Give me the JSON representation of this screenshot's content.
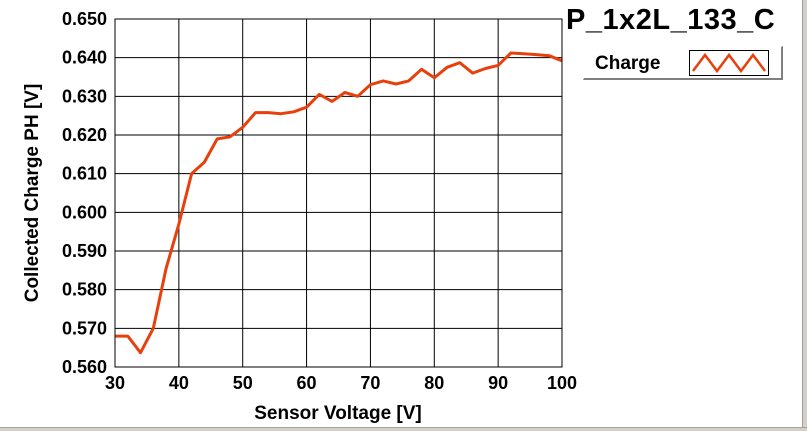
{
  "chart_data": {
    "type": "line",
    "title": "P_1x2L_133_C",
    "xlabel": "Sensor Voltage [V]",
    "ylabel": "Collected Charge PH [V]",
    "xlim": [
      30,
      100
    ],
    "ylim": [
      0.56,
      0.65
    ],
    "grid": true,
    "legend_placement": "top-right",
    "x_ticks": [
      "30",
      "40",
      "50",
      "60",
      "70",
      "80",
      "90",
      "100"
    ],
    "y_ticks": [
      "0.560",
      "0.570",
      "0.580",
      "0.590",
      "0.600",
      "0.610",
      "0.620",
      "0.630",
      "0.640",
      "0.650"
    ],
    "series": [
      {
        "name": "Charge",
        "color": "#e8400c",
        "x": [
          30,
          32,
          34,
          36,
          38,
          40,
          42,
          44,
          46,
          48,
          50,
          52,
          54,
          56,
          58,
          60,
          62,
          64,
          66,
          68,
          70,
          72,
          74,
          76,
          78,
          80,
          82,
          84,
          86,
          88,
          90,
          92,
          94,
          96,
          98,
          100
        ],
        "y": [
          0.568,
          0.568,
          0.5637,
          0.57,
          0.5855,
          0.597,
          0.61,
          0.613,
          0.619,
          0.6195,
          0.622,
          0.6258,
          0.6258,
          0.6255,
          0.626,
          0.6272,
          0.6305,
          0.6287,
          0.631,
          0.63,
          0.633,
          0.634,
          0.6332,
          0.634,
          0.637,
          0.6348,
          0.6375,
          0.6387,
          0.636,
          0.6372,
          0.638,
          0.6412,
          0.641,
          0.6408,
          0.6405,
          0.6392
        ]
      }
    ]
  },
  "colors": {
    "plot_background": "#ffffff",
    "grid": "#000000",
    "series_line": "#e8400c",
    "panel_frame": "#d4d0c8"
  }
}
